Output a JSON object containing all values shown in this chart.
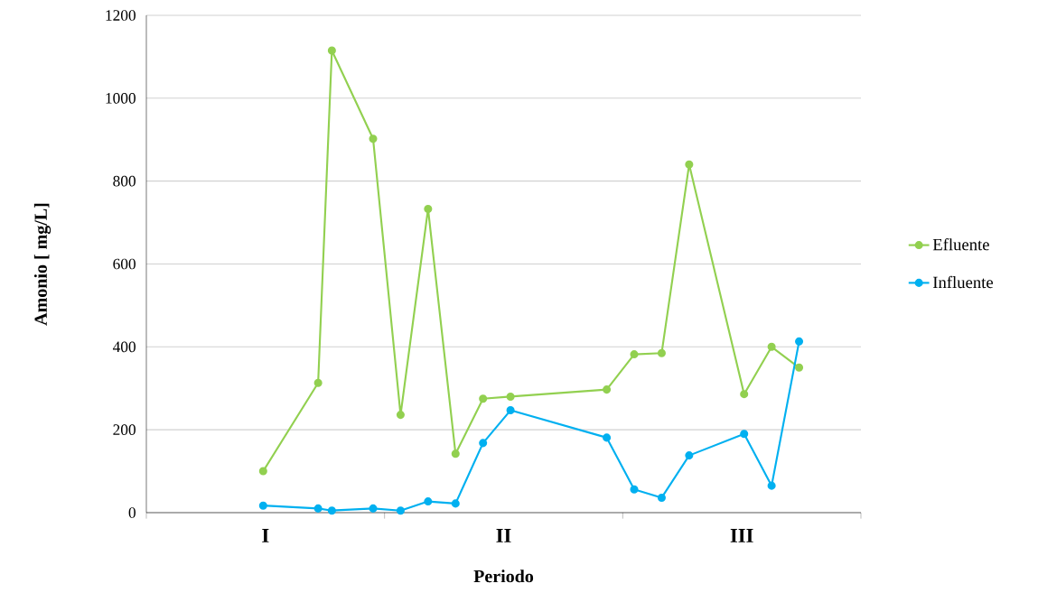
{
  "chart_data": {
    "type": "line",
    "xlabel": "Periodo",
    "ylabel": "Amonio [ mg/L]",
    "categories": [
      null,
      null,
      null,
      null,
      null,
      null,
      null,
      null,
      null,
      null,
      null,
      null,
      null,
      null,
      null,
      null,
      null,
      null,
      null,
      null,
      null,
      null,
      null,
      null,
      null,
      null,
      null,
      null,
      null,
      null,
      null,
      null,
      null,
      null,
      null,
      null,
      null,
      null,
      null,
      null,
      null,
      null,
      null,
      null,
      null,
      null,
      null,
      null,
      null,
      null,
      null,
      null
    ],
    "annotations": [
      "I",
      "II",
      "III"
    ],
    "ylim": [
      0,
      1200
    ],
    "yticks": [
      0,
      200,
      400,
      600,
      800,
      1000,
      1200
    ],
    "series": [
      {
        "name": "Efluente",
        "color": "#92d050",
        "values": [
          null,
          null,
          null,
          null,
          null,
          null,
          null,
          null,
          100,
          null,
          null,
          null,
          313,
          1115,
          null,
          null,
          902,
          null,
          236,
          null,
          733,
          null,
          142,
          null,
          275,
          null,
          280,
          null,
          null,
          null,
          null,
          null,
          null,
          297,
          null,
          382,
          null,
          385,
          null,
          840,
          null,
          null,
          null,
          286,
          null,
          400,
          null,
          350,
          null,
          null,
          null,
          null
        ]
      },
      {
        "name": "Influente",
        "color": "#00b0f0",
        "values": [
          null,
          null,
          null,
          null,
          null,
          null,
          null,
          null,
          17,
          null,
          null,
          null,
          10,
          5,
          null,
          null,
          10,
          null,
          5,
          null,
          27,
          null,
          22,
          null,
          168,
          null,
          247,
          null,
          null,
          null,
          null,
          null,
          null,
          181,
          null,
          56,
          null,
          36,
          null,
          138,
          null,
          null,
          null,
          190,
          null,
          65,
          null,
          413,
          null,
          null,
          null,
          null
        ]
      }
    ],
    "grid": "y",
    "legend": "right",
    "marker": "circle",
    "line_style": "solid"
  }
}
